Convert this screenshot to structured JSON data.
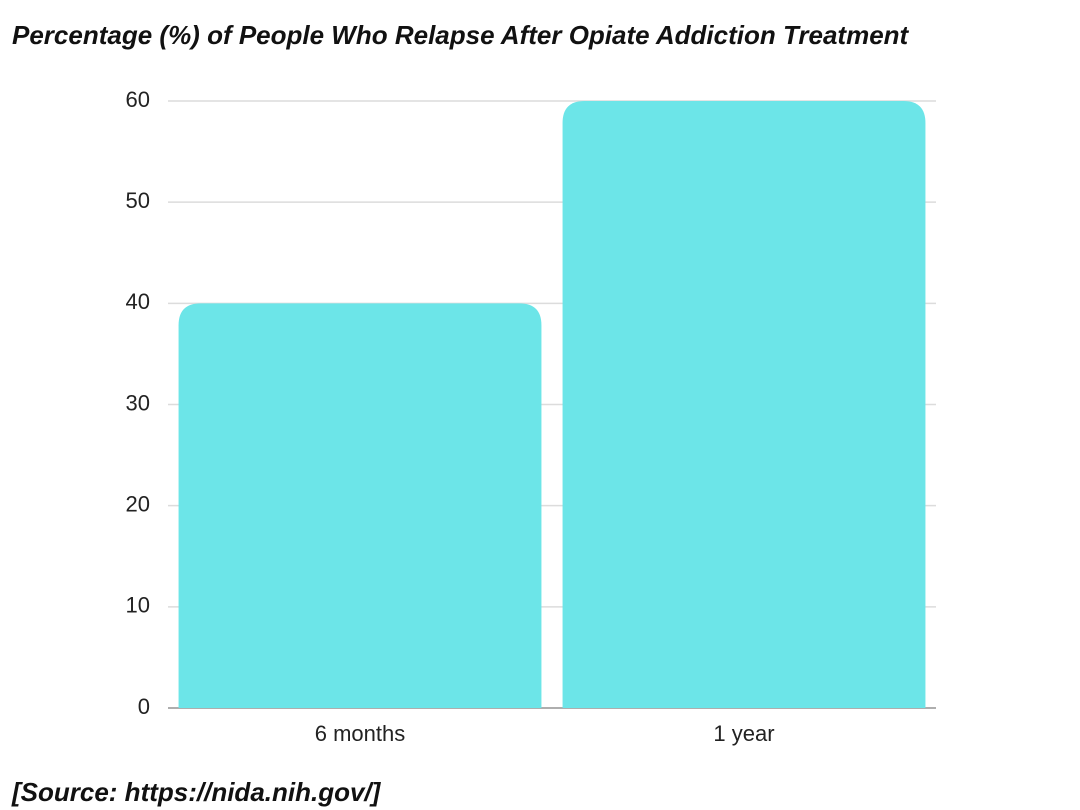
{
  "chart_data": {
    "type": "bar",
    "title": "Percentage (%) of People Who Relapse After Opiate Addiction Treatment",
    "categories": [
      "6 months",
      "1 year"
    ],
    "values": [
      40,
      60
    ],
    "color": "#6ce5e8",
    "ylim": [
      0,
      60
    ],
    "yticks": [
      0,
      10,
      20,
      30,
      40,
      50,
      60
    ],
    "grid": true,
    "source": "[Source: https://nida.nih.gov/]"
  }
}
